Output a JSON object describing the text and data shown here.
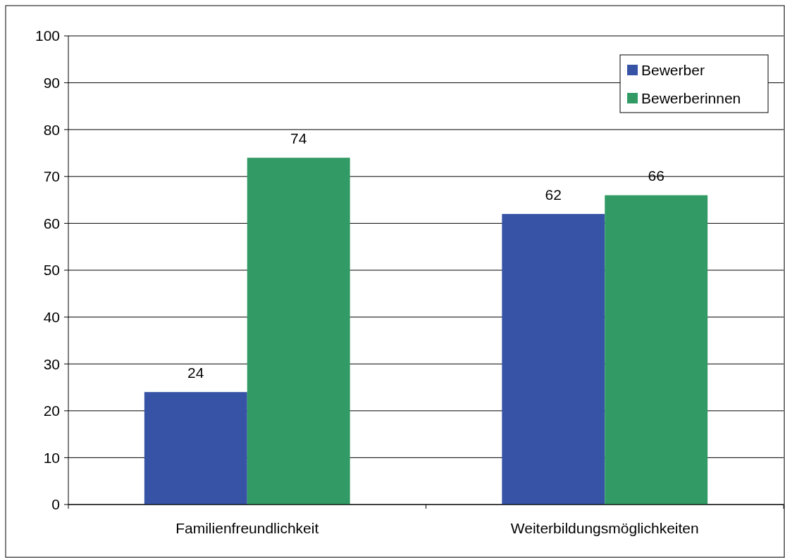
{
  "chart_data": {
    "type": "bar",
    "categories": [
      "Familienfreundlichkeit",
      "Weiterbildungsmöglichkeiten"
    ],
    "series": [
      {
        "name": "Bewerber",
        "color": "#3653a5",
        "values": [
          24,
          62
        ]
      },
      {
        "name": "Bewerberinnen",
        "color": "#329b65",
        "values": [
          74,
          66
        ]
      }
    ],
    "ylim": [
      0,
      100
    ],
    "yticks": [
      0,
      10,
      20,
      30,
      40,
      50,
      60,
      70,
      80,
      90,
      100
    ],
    "grid": "y",
    "legend": "top right",
    "data_labels": true
  }
}
